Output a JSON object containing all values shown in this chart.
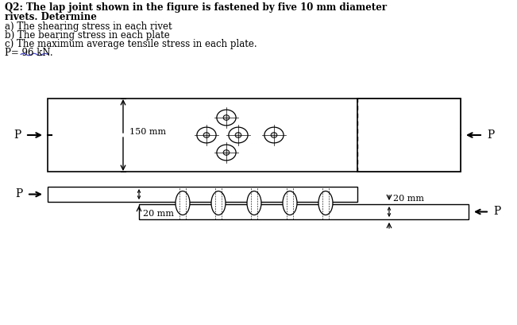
{
  "title_line1": "Q2: The lap joint shown in the figure is fastened by five 10 mm diameter",
  "title_line2": "rivets. Determine",
  "item_a": "a) The shearing stress in each rivet",
  "item_b": "b) The bearing stress in each plate",
  "item_c": "c) The maximum average tensile stress in each plate.",
  "p_value": "P= 96 kN.",
  "label_150mm": "150 mm",
  "label_20mm_bottom": "20 mm",
  "label_20mm_right": "20 mm",
  "label_P": "P",
  "bg_color": "#ffffff",
  "wavy_color": "#4444cc",
  "line_color": "#000000"
}
